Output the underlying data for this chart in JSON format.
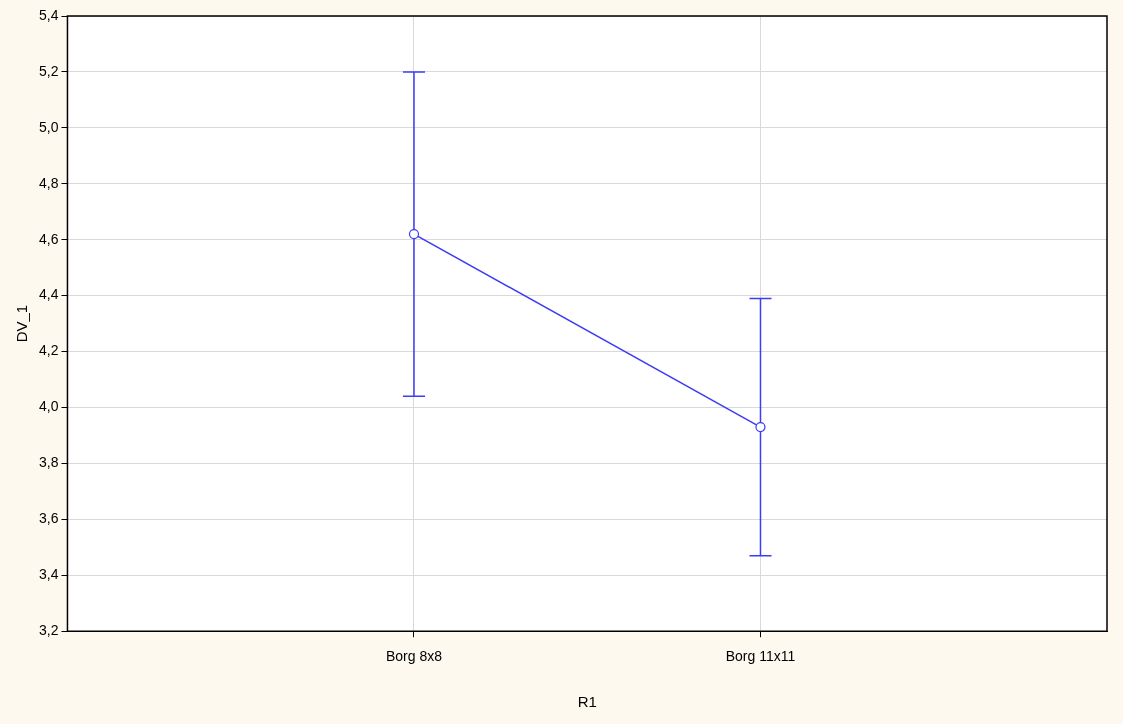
{
  "chart_data": {
    "type": "line",
    "xlabel": "R1",
    "ylabel": "DV_1",
    "categories": [
      "Borg 8x8",
      "Borg 11x11"
    ],
    "series": [
      {
        "color": "#3c3cf5",
        "values": [
          4.62,
          3.93
        ],
        "errors": [
          0.58,
          0.46
        ]
      }
    ],
    "ylim": [
      3.2,
      5.4
    ],
    "yticks": [
      {
        "value": 3.2,
        "label": "3,2"
      },
      {
        "value": 3.4,
        "label": "3,4"
      },
      {
        "value": 3.6,
        "label": "3,6"
      },
      {
        "value": 3.8,
        "label": "3,8"
      },
      {
        "value": 4.0,
        "label": "4,0"
      },
      {
        "value": 4.2,
        "label": "4,2"
      },
      {
        "value": 4.4,
        "label": "4,4"
      },
      {
        "value": 4.6,
        "label": "4,6"
      },
      {
        "value": 4.8,
        "label": "4,8"
      },
      {
        "value": 5.0,
        "label": "5,0"
      },
      {
        "value": 5.2,
        "label": "5,2"
      },
      {
        "value": 5.4,
        "label": "5,4"
      }
    ],
    "grid": true,
    "legend": false,
    "marker": "circle",
    "line_style": "solid"
  }
}
